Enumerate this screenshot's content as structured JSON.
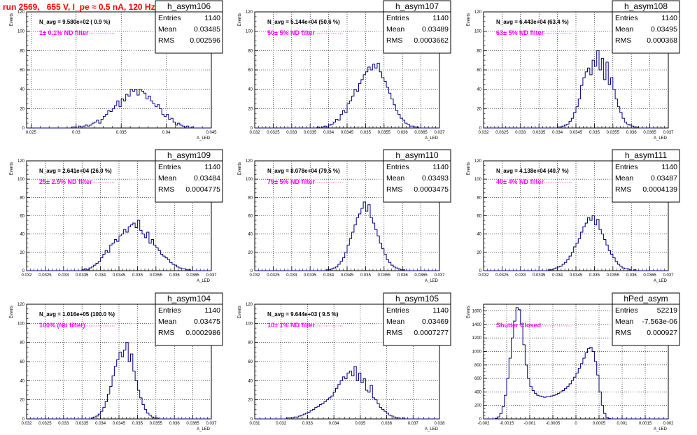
{
  "title": "run 2569,   655 V, I_pe ≈ 0.5 nA, 120 Hz",
  "stat_labels": {
    "entries": "Entries",
    "mean": "Mean",
    "rms": "RMS"
  },
  "chart_data": [
    {
      "type": "histogram",
      "name": "h_asym106",
      "navg": "N_avg = 9.580e+02 ( 0.9 %)",
      "filter": "1± 0.1% ND filter",
      "ylabel": "Events",
      "xlabel": "A_LED",
      "xlim": [
        0.0245,
        0.045
      ],
      "ylim": [
        0,
        120
      ],
      "xticks": [
        0.025,
        0.03,
        0.035,
        0.04,
        0.045
      ],
      "xticklabels": [
        "0.025",
        "0.03",
        "0.035",
        "0.04",
        "0.045"
      ],
      "yticks": [
        0,
        20,
        40,
        60,
        80,
        100,
        120
      ],
      "stats": {
        "entries": "1140",
        "mean": "0.03485",
        "rms": "0.002596"
      },
      "bins": {
        "start": 0.0245,
        "width": 0.00025,
        "counts": [
          0,
          0,
          0,
          0,
          0,
          0,
          0,
          0,
          0,
          0,
          0,
          0,
          0,
          0,
          0,
          0,
          0,
          0,
          0,
          0,
          1,
          1,
          0,
          2,
          1,
          2,
          3,
          2,
          3,
          5,
          6,
          8,
          5,
          9,
          12,
          14,
          18,
          17,
          20,
          23,
          28,
          22,
          30,
          28,
          35,
          33,
          40,
          38,
          40,
          34,
          40,
          38,
          36,
          30,
          33,
          28,
          25,
          22,
          24,
          20,
          14,
          12,
          14,
          9,
          10,
          6,
          3,
          5,
          3,
          2,
          1,
          2,
          0,
          1,
          0,
          0,
          0,
          0,
          0,
          0,
          0,
          0
        ]
      }
    },
    {
      "type": "histogram",
      "name": "h_asym107",
      "navg": "N_avg = 5.144e+04 (50.6 %)",
      "filter": "50± 5% ND filter",
      "ylabel": "Events",
      "xlabel": "A_LED",
      "xlim": [
        0.032,
        0.037
      ],
      "ylim": [
        0,
        120
      ],
      "xticks": [
        0.032,
        0.0325,
        0.033,
        0.0335,
        0.034,
        0.0345,
        0.035,
        0.0355,
        0.036,
        0.0365,
        0.037
      ],
      "xticklabels": [
        "0.032",
        "0.0325",
        "0.033",
        "0.0335",
        "0.034",
        "0.0345",
        "0.035",
        "0.0355",
        "0.036",
        "0.0365",
        "0.037"
      ],
      "yticks": [
        0,
        20,
        40,
        60,
        80,
        100,
        120
      ],
      "stats": {
        "entries": "1140",
        "mean": "0.03489",
        "rms": "0.0003662"
      },
      "bins": {
        "start": 0.032,
        "width": 6.25e-05,
        "counts": [
          0,
          0,
          0,
          0,
          0,
          0,
          0,
          0,
          0,
          0,
          0,
          0,
          0,
          0,
          0,
          0,
          0,
          0,
          0,
          0,
          0,
          0,
          0,
          0,
          0,
          0,
          0,
          1,
          0,
          1,
          2,
          1,
          3,
          4,
          6,
          9,
          8,
          14,
          18,
          16,
          25,
          28,
          33,
          40,
          38,
          46,
          50,
          55,
          58,
          63,
          60,
          66,
          62,
          67,
          58,
          52,
          48,
          42,
          36,
          30,
          24,
          18,
          14,
          10,
          8,
          5,
          4,
          2,
          2,
          1,
          1,
          0,
          0,
          0,
          0,
          0,
          0,
          0,
          0,
          0
        ]
      }
    },
    {
      "type": "histogram",
      "name": "h_asym108",
      "navg": "N_avg = 6.443e+04 (63.4 %)",
      "filter": "63± 5% ND filter",
      "ylabel": "Events",
      "xlabel": "A_LED",
      "xlim": [
        0.032,
        0.037
      ],
      "ylim": [
        0,
        120
      ],
      "xticks": [
        0.032,
        0.0325,
        0.033,
        0.0335,
        0.034,
        0.0345,
        0.035,
        0.0355,
        0.036,
        0.0365,
        0.037
      ],
      "xticklabels": [
        "0.032",
        "0.0325",
        "0.033",
        "0.0335",
        "0.034",
        "0.0345",
        "0.035",
        "0.0355",
        "0.036",
        "0.0365",
        "0.037"
      ],
      "yticks": [
        0,
        20,
        40,
        60,
        80,
        100,
        120
      ],
      "stats": {
        "entries": "1140",
        "mean": "0.03495",
        "rms": "0.000368"
      },
      "bins": {
        "start": 0.032,
        "width": 6.25e-05,
        "counts": [
          0,
          0,
          0,
          0,
          0,
          0,
          0,
          0,
          0,
          0,
          0,
          0,
          0,
          0,
          0,
          0,
          0,
          0,
          0,
          0,
          0,
          0,
          0,
          0,
          0,
          0,
          0,
          0,
          0,
          0,
          0,
          0,
          1,
          1,
          2,
          3,
          4,
          7,
          10,
          16,
          22,
          30,
          44,
          52,
          58,
          62,
          55,
          70,
          64,
          80,
          60,
          72,
          50,
          68,
          45,
          52,
          40,
          30,
          22,
          16,
          10,
          6,
          4,
          3,
          2,
          1,
          1,
          0,
          0,
          0,
          0,
          0,
          0,
          0,
          0,
          0
        ]
      }
    },
    {
      "type": "histogram",
      "name": "h_asym109",
      "navg": "N_avg = 2.641e+04 (26.0 %)",
      "filter": "25± 2.5% ND filter",
      "ylabel": "Events",
      "xlabel": "A_LED",
      "xlim": [
        0.032,
        0.037
      ],
      "ylim": [
        0,
        120
      ],
      "xticks": [
        0.032,
        0.0325,
        0.033,
        0.0335,
        0.034,
        0.0345,
        0.035,
        0.0355,
        0.036,
        0.0365,
        0.037
      ],
      "xticklabels": [
        "0.032",
        "0.0325",
        "0.033",
        "0.0335",
        "0.034",
        "0.0345",
        "0.035",
        "0.0355",
        "0.036",
        "0.0365",
        "0.037"
      ],
      "yticks": [
        0,
        20,
        40,
        60,
        80,
        100,
        120
      ],
      "stats": {
        "entries": "1140",
        "mean": "0.03484",
        "rms": "0.0004775"
      },
      "bins": {
        "start": 0.032,
        "width": 6.25e-05,
        "counts": [
          0,
          0,
          0,
          0,
          0,
          0,
          0,
          0,
          0,
          0,
          0,
          0,
          0,
          0,
          0,
          0,
          0,
          0,
          0,
          0,
          0,
          0,
          0,
          0,
          1,
          2,
          1,
          3,
          4,
          6,
          8,
          10,
          14,
          18,
          22,
          20,
          28,
          30,
          34,
          32,
          38,
          40,
          45,
          42,
          48,
          50,
          52,
          47,
          55,
          44,
          40,
          36,
          42,
          30,
          34,
          28,
          25,
          22,
          18,
          16,
          14,
          12,
          9,
          7,
          6,
          4,
          3,
          2,
          2,
          1,
          1,
          0,
          0,
          0,
          0,
          0,
          0,
          0,
          0,
          0
        ]
      }
    },
    {
      "type": "histogram",
      "name": "h_asym110",
      "navg": "N_avg = 8.078e+04 (79.5 %)",
      "filter": "79± 5% ND filter",
      "ylabel": "Events",
      "xlabel": "A_LED",
      "xlim": [
        0.032,
        0.037
      ],
      "ylim": [
        0,
        120
      ],
      "xticks": [
        0.032,
        0.0325,
        0.033,
        0.0335,
        0.034,
        0.0345,
        0.035,
        0.0355,
        0.036,
        0.0365,
        0.037
      ],
      "xticklabels": [
        "0.032",
        "0.0325",
        "0.033",
        "0.0335",
        "0.034",
        "0.0345",
        "0.035",
        "0.0355",
        "0.036",
        "0.0365",
        "0.037"
      ],
      "yticks": [
        0,
        20,
        40,
        60,
        80,
        100,
        120
      ],
      "stats": {
        "entries": "1140",
        "mean": "0.03493",
        "rms": "0.0003475"
      },
      "bins": {
        "start": 0.032,
        "width": 6.25e-05,
        "counts": [
          0,
          0,
          0,
          0,
          0,
          0,
          0,
          0,
          0,
          0,
          0,
          0,
          0,
          0,
          0,
          0,
          0,
          0,
          0,
          0,
          0,
          0,
          0,
          0,
          0,
          0,
          0,
          0,
          0,
          0,
          0,
          1,
          1,
          2,
          3,
          4,
          7,
          10,
          14,
          20,
          28,
          35,
          42,
          50,
          58,
          62,
          68,
          75,
          65,
          72,
          58,
          52,
          45,
          38,
          30,
          24,
          18,
          12,
          9,
          6,
          4,
          3,
          2,
          1,
          1,
          0,
          0,
          0,
          0,
          0,
          0,
          0,
          0,
          0,
          0,
          0,
          0,
          0,
          0,
          0
        ]
      }
    },
    {
      "type": "histogram",
      "name": "h_asym111",
      "navg": "N_avg = 4.138e+04 (40.7 %)",
      "filter": "40± 4% ND filter",
      "ylabel": "Events",
      "xlabel": "A_LED",
      "xlim": [
        0.032,
        0.037
      ],
      "ylim": [
        0,
        120
      ],
      "xticks": [
        0.032,
        0.0325,
        0.033,
        0.0335,
        0.034,
        0.0345,
        0.035,
        0.0355,
        0.036,
        0.0365,
        0.037
      ],
      "xticklabels": [
        "0.032",
        "0.0325",
        "0.033",
        "0.0335",
        "0.034",
        "0.0345",
        "0.035",
        "0.0355",
        "0.036",
        "0.0365",
        "0.037"
      ],
      "yticks": [
        0,
        20,
        40,
        60,
        80,
        100,
        120
      ],
      "stats": {
        "entries": "1140",
        "mean": "0.03487",
        "rms": "0.0004139"
      },
      "bins": {
        "start": 0.032,
        "width": 6.25e-05,
        "counts": [
          0,
          0,
          0,
          0,
          0,
          0,
          0,
          0,
          0,
          0,
          0,
          0,
          0,
          0,
          0,
          0,
          0,
          0,
          0,
          0,
          0,
          0,
          0,
          0,
          0,
          0,
          0,
          0,
          1,
          1,
          2,
          3,
          4,
          5,
          7,
          9,
          12,
          16,
          20,
          26,
          30,
          35,
          42,
          48,
          52,
          58,
          55,
          60,
          50,
          56,
          45,
          40,
          34,
          28,
          22,
          18,
          14,
          10,
          7,
          5,
          3,
          2,
          2,
          1,
          0,
          1,
          0,
          0,
          0,
          0,
          0,
          0,
          0,
          0,
          0,
          0,
          0,
          0,
          0,
          0
        ]
      }
    },
    {
      "type": "histogram",
      "name": "h_asym104",
      "navg": "N_avg = 1.016e+05 (100.0 %)",
      "filter": "100% (No filter)",
      "ylabel": "Events",
      "xlabel": "A_LED",
      "xlim": [
        0.032,
        0.037
      ],
      "ylim": [
        0,
        120
      ],
      "xticks": [
        0.032,
        0.0325,
        0.033,
        0.0335,
        0.034,
        0.0345,
        0.035,
        0.0355,
        0.036,
        0.0365,
        0.037
      ],
      "xticklabels": [
        "0.032",
        "0.0325",
        "0.033",
        "0.0335",
        "0.034",
        "0.0345",
        "0.035",
        "0.0355",
        "0.036",
        "0.0365",
        "0.037"
      ],
      "yticks": [
        0,
        20,
        40,
        60,
        80,
        100,
        120
      ],
      "stats": {
        "entries": "1140",
        "mean": "0.03475",
        "rms": "0.0002986"
      },
      "bins": {
        "start": 0.032,
        "width": 6.25e-05,
        "counts": [
          0,
          0,
          0,
          0,
          0,
          0,
          0,
          0,
          0,
          0,
          0,
          0,
          0,
          0,
          0,
          0,
          0,
          0,
          0,
          0,
          0,
          0,
          0,
          0,
          0,
          0,
          0,
          0,
          1,
          2,
          3,
          5,
          8,
          12,
          18,
          26,
          34,
          45,
          55,
          62,
          70,
          65,
          72,
          80,
          60,
          68,
          50,
          40,
          30,
          22,
          15,
          10,
          6,
          4,
          2,
          1,
          1,
          0,
          0,
          0,
          0,
          0,
          0,
          0,
          0,
          0,
          0,
          0,
          0,
          0,
          0,
          0,
          0,
          0,
          0,
          0,
          0,
          0,
          0,
          0
        ]
      }
    },
    {
      "type": "histogram",
      "name": "h_asym105",
      "navg": "N_avg = 9.644e+03 ( 9.5 %)",
      "filter": "10± 1% ND filter",
      "ylabel": "Events",
      "xlabel": "A_LED",
      "xlim": [
        0.031,
        0.038
      ],
      "ylim": [
        0,
        120
      ],
      "xticks": [
        0.031,
        0.032,
        0.033,
        0.034,
        0.035,
        0.036,
        0.037,
        0.038
      ],
      "xticklabels": [
        "0.031",
        "0.032",
        "0.033",
        "0.034",
        "0.035",
        "0.036",
        "0.037",
        "0.038"
      ],
      "yticks": [
        0,
        20,
        40,
        60,
        80,
        100,
        120
      ],
      "stats": {
        "entries": "1140",
        "mean": "0.03469",
        "rms": "0.0007277"
      },
      "bins": {
        "start": 0.031,
        "width": 8.75e-05,
        "counts": [
          0,
          0,
          0,
          0,
          0,
          0,
          0,
          0,
          0,
          0,
          0,
          0,
          0,
          0,
          1,
          1,
          1,
          2,
          2,
          3,
          4,
          5,
          6,
          7,
          9,
          10,
          12,
          13,
          15,
          16,
          18,
          20,
          22,
          24,
          28,
          32,
          36,
          40,
          44,
          42,
          48,
          50,
          45,
          55,
          40,
          48,
          38,
          42,
          30,
          28,
          35,
          22,
          20,
          16,
          12,
          10,
          8,
          6,
          4,
          3,
          2,
          1,
          1,
          0,
          1,
          0,
          0,
          0,
          0,
          0,
          0,
          0,
          0,
          0,
          0,
          0,
          0,
          0,
          0,
          0
        ]
      }
    },
    {
      "type": "histogram",
      "name": "hPed_asym",
      "navg": "",
      "filter": "Shutter Closed",
      "ylabel": "Events",
      "xlabel": "A_LED",
      "xlim": [
        -0.002,
        0.002
      ],
      "ylim": [
        0,
        1700
      ],
      "xticks": [
        -0.002,
        -0.0015,
        -0.001,
        -0.0005,
        0,
        0.0005,
        0.001,
        0.0015,
        0.002
      ],
      "xticklabels": [
        "-0.002",
        "-0.0015",
        "-0.001",
        "-0.0005",
        "0",
        "0.0005",
        "0.001",
        "0.0015",
        "0.002"
      ],
      "yticks": [
        0,
        200,
        400,
        600,
        800,
        1000,
        1200,
        1400,
        1600
      ],
      "stats": {
        "entries": "52219",
        "mean": "-7.563e-06",
        "rms": "0.000927"
      },
      "bins": {
        "start": -0.002,
        "width": 5e-05,
        "counts": [
          0,
          0,
          0,
          0,
          0,
          10,
          30,
          80,
          180,
          350,
          600,
          900,
          1200,
          1450,
          1650,
          1620,
          1400,
          1100,
          800,
          600,
          480,
          420,
          380,
          350,
          340,
          330,
          320,
          330,
          330,
          340,
          350,
          360,
          380,
          400,
          420,
          450,
          480,
          520,
          570,
          620,
          680,
          750,
          820,
          900,
          980,
          1040,
          1060,
          1000,
          850,
          650,
          400,
          200,
          80,
          20,
          5,
          0,
          0,
          0,
          0,
          0,
          0,
          0,
          0,
          0,
          0,
          0,
          0,
          0,
          0,
          0,
          0,
          0,
          0,
          0,
          0,
          0,
          0,
          0,
          0,
          0
        ]
      }
    }
  ]
}
